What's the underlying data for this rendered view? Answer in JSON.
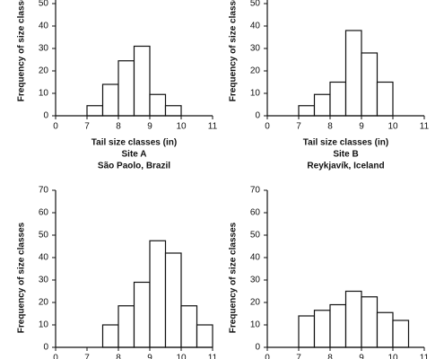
{
  "chart_data": [
    {
      "type": "histogram",
      "x_label": "Tail size classes (in)",
      "y_label": "Frequency of size classes",
      "title": "Site A",
      "subtitle": "São Paolo, Brazil",
      "bins": [
        7,
        7.5,
        8,
        8.5,
        9,
        9.5,
        10
      ],
      "values": [
        4.5,
        14,
        24.5,
        31,
        9.5,
        4.5
      ],
      "color": "#ffffff",
      "xlim": [
        7,
        11
      ],
      "xticks": [
        0,
        7,
        8,
        9,
        10,
        11
      ],
      "x_axis_break": true,
      "ylim": [
        0,
        70
      ],
      "yticks": [
        0,
        10,
        20,
        30,
        40,
        50
      ]
    },
    {
      "type": "histogram",
      "x_label": "Tail size classes (in)",
      "y_label": "Frequency of size classes",
      "title": "Site B",
      "subtitle": "Reykjavík, Iceland",
      "bins": [
        7,
        7.5,
        8,
        8.5,
        9,
        9.5,
        10
      ],
      "values": [
        4.5,
        9.5,
        15,
        38,
        28,
        15
      ],
      "color": "#ffffff",
      "xlim": [
        7,
        11
      ],
      "xticks": [
        0,
        7,
        8,
        9,
        10,
        11
      ],
      "x_axis_break": true,
      "ylim": [
        0,
        70
      ],
      "yticks": [
        0,
        10,
        20,
        30,
        40,
        50
      ]
    },
    {
      "type": "histogram",
      "y_label": "Frequency of size classes",
      "bins": [
        7.5,
        8,
        8.5,
        9,
        9.5,
        10,
        10.5,
        11
      ],
      "values": [
        10,
        18.5,
        29,
        47.5,
        42,
        18.5,
        10
      ],
      "color": "#ffffff",
      "xlim": [
        7,
        11
      ],
      "xticks": [
        0,
        7,
        8,
        9,
        10,
        11
      ],
      "x_axis_break": true,
      "ylim": [
        0,
        70
      ],
      "yticks": [
        0,
        10,
        20,
        30,
        40,
        50,
        60,
        70
      ]
    },
    {
      "type": "histogram",
      "y_label": "Frequency of size classes",
      "bins": [
        7,
        7.5,
        8,
        8.5,
        9,
        9.5,
        10,
        10.5
      ],
      "values": [
        14,
        16.5,
        19,
        25,
        22.5,
        15.5,
        12
      ],
      "color": "#ffffff",
      "xlim": [
        7,
        11
      ],
      "xticks": [
        0,
        7,
        8,
        9,
        10,
        11
      ],
      "x_axis_break": true,
      "ylim": [
        0,
        70
      ],
      "yticks": [
        0,
        10,
        20,
        30,
        40,
        50,
        60,
        70
      ]
    }
  ]
}
